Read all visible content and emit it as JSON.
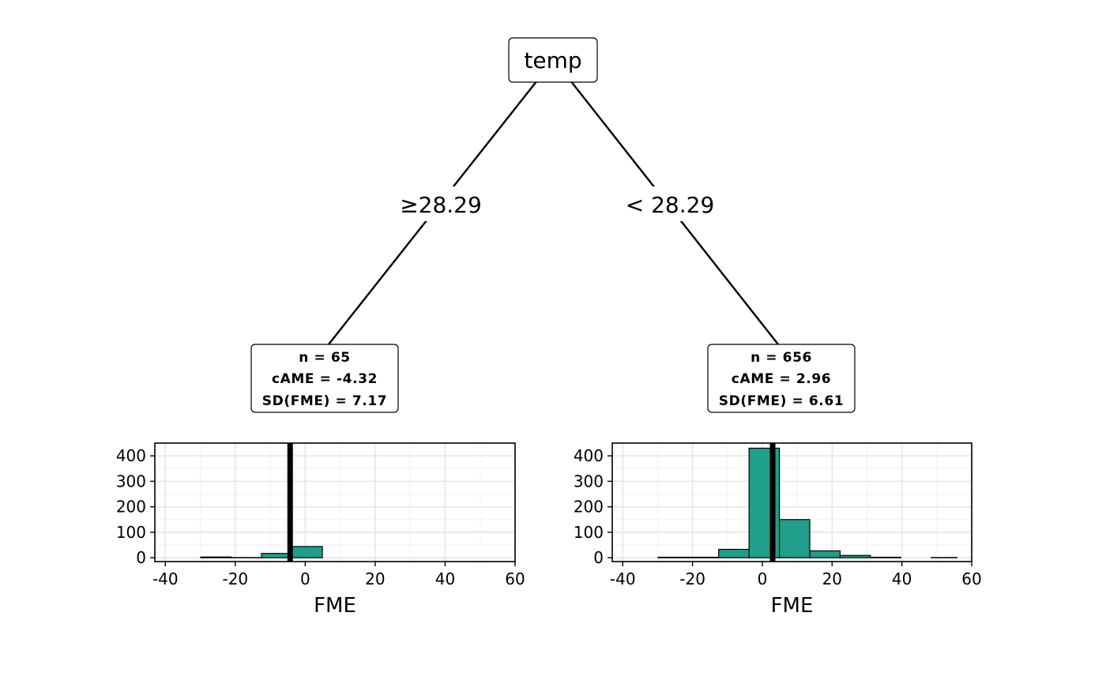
{
  "root": {
    "label": "temp"
  },
  "edges": {
    "left_label": "≥28.29",
    "right_label": "<  28.29"
  },
  "colors": {
    "bar_fill": "#1f9e89",
    "bar_stroke": "#000000",
    "grid": "#e6e6e6"
  },
  "chart_data": [
    {
      "type": "bar",
      "title": "",
      "xlabel": "FME",
      "ylabel": "",
      "stats": [
        "n = 65",
        "cAME = -4.32",
        "SD(FME) = 7.17"
      ],
      "xlim": [
        -43,
        60
      ],
      "ylim": [
        -15,
        450
      ],
      "x_ticks": [
        -40,
        -20,
        0,
        20,
        40,
        60
      ],
      "x_tick_labels": [
        "-40",
        "-20",
        "0",
        "20",
        "40",
        "60"
      ],
      "y_ticks": [
        0,
        100,
        200,
        300,
        400
      ],
      "y_tick_labels": [
        "0",
        "100",
        "200",
        "300",
        "400"
      ],
      "bin_edges": [
        -38.6,
        -29.9,
        -21.2,
        -12.5,
        -3.8,
        4.9,
        13.6,
        22.3,
        31.0,
        39.7,
        48.4,
        55.8
      ],
      "values": [
        0,
        3,
        1,
        17,
        44,
        0,
        0,
        0,
        0,
        0,
        0
      ],
      "mean": -4.32,
      "grid": true
    },
    {
      "type": "bar",
      "title": "",
      "xlabel": "FME",
      "ylabel": "",
      "stats": [
        "n = 656",
        "cAME = 2.96",
        "SD(FME) = 6.61"
      ],
      "xlim": [
        -43,
        60
      ],
      "ylim": [
        -15,
        450
      ],
      "x_ticks": [
        -40,
        -20,
        0,
        20,
        40,
        60
      ],
      "x_tick_labels": [
        "-40",
        "-20",
        "0",
        "20",
        "40",
        "60"
      ],
      "y_ticks": [
        0,
        100,
        200,
        300,
        400
      ],
      "y_tick_labels": [
        "0",
        "100",
        "200",
        "300",
        "400"
      ],
      "bin_edges": [
        -38.6,
        -29.9,
        -21.2,
        -12.5,
        -3.8,
        4.9,
        13.6,
        22.3,
        31.0,
        39.7,
        48.4,
        55.8
      ],
      "values": [
        0,
        2,
        2,
        33,
        430,
        150,
        27,
        9,
        2,
        0,
        1
      ],
      "mean": 2.96,
      "grid": true
    }
  ]
}
